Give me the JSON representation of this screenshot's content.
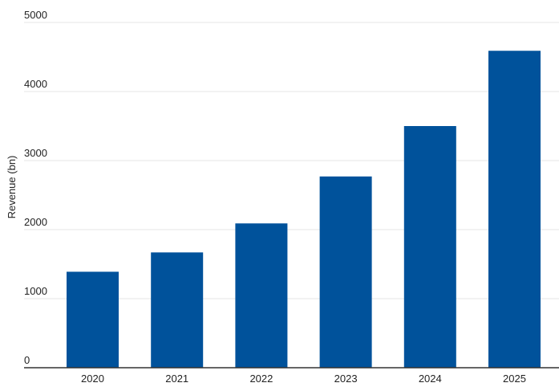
{
  "chart_data": {
    "type": "bar",
    "title": "",
    "xlabel": "",
    "ylabel": "Revenue (bn)",
    "categories": [
      "2020",
      "2021",
      "2022",
      "2023",
      "2024",
      "2025"
    ],
    "values": [
      1390,
      1670,
      2090,
      2770,
      3500,
      4590
    ],
    "ylim": [
      0,
      5000
    ],
    "yticks": [
      "0",
      "1000",
      "2000",
      "3000",
      "4000",
      "5000"
    ],
    "grid": true,
    "legend": "none",
    "colors": {
      "bar": "#00529b",
      "grid": "#e6e6e6",
      "axis": "#333333",
      "text": "#222222"
    }
  }
}
